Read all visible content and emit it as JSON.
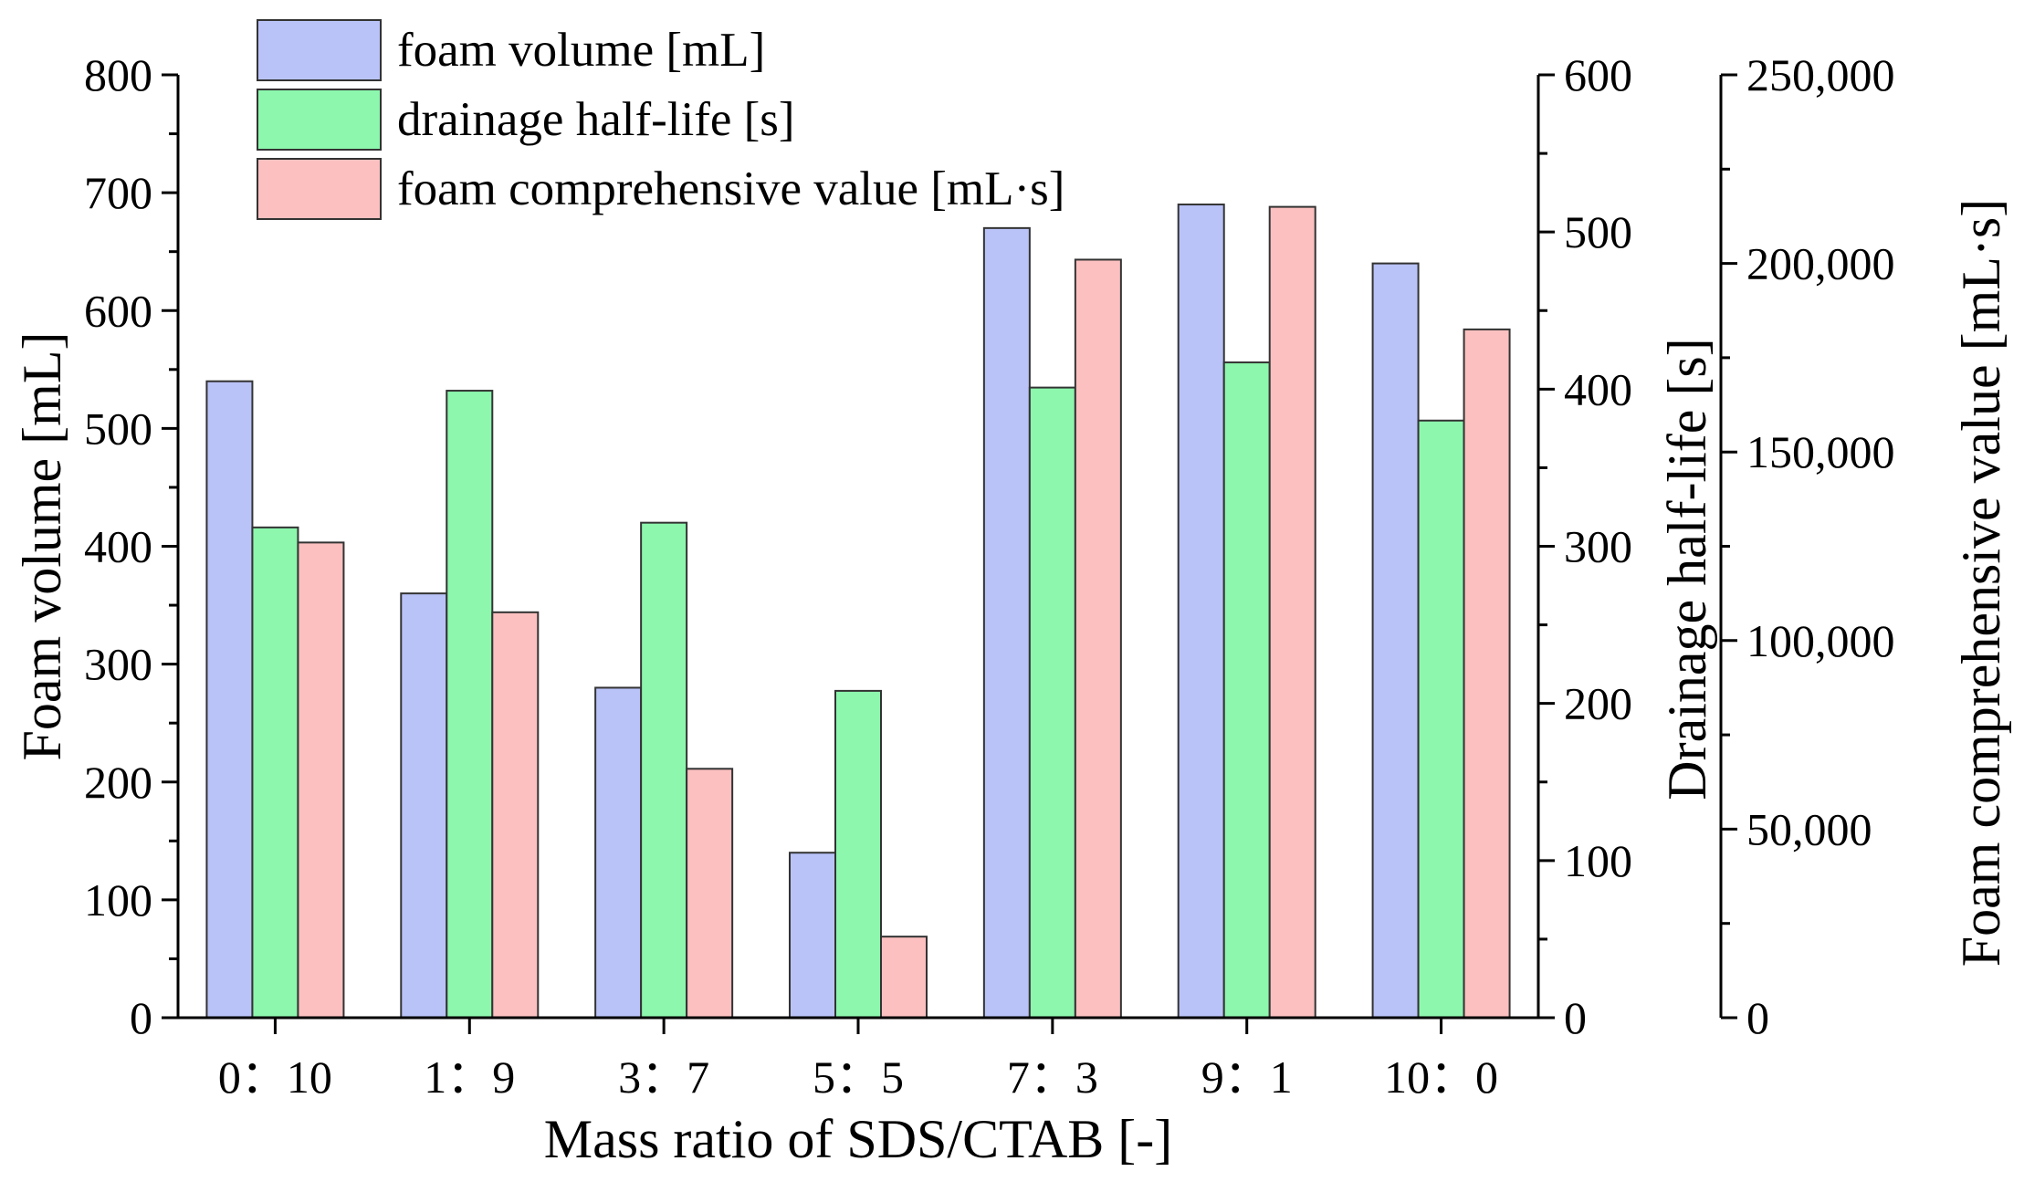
{
  "chart_data": {
    "type": "bar",
    "xlabel": "Mass ratio of SDS/CTAB [-]",
    "categories": [
      "0：10",
      "1：9",
      "3：7",
      "5：5",
      "7：3",
      "9：1",
      "10：0"
    ],
    "series": [
      {
        "name": "foam volume [mL]",
        "axis": "left",
        "color": "#b9c3f8",
        "values": [
          540,
          360,
          280,
          140,
          670,
          690,
          640
        ]
      },
      {
        "name": "drainage half-life [s]",
        "axis": "right1",
        "color": "#8cf7ad",
        "values": [
          312,
          399,
          315,
          208,
          401,
          417,
          380
        ]
      },
      {
        "name": "foam comprehensive value [mL·s]",
        "axis": "right2",
        "color": "#fcc0c0",
        "values": [
          126000,
          107500,
          66000,
          21500,
          201000,
          215000,
          182500
        ]
      }
    ],
    "axes": {
      "left": {
        "label": "Foam volume [mL]",
        "ylim": [
          0,
          800
        ],
        "ticks": [
          0,
          100,
          200,
          300,
          400,
          500,
          600,
          700,
          800
        ],
        "tick_labels": [
          "0",
          "100",
          "200",
          "300",
          "400",
          "500",
          "600",
          "700",
          "800"
        ]
      },
      "right1": {
        "label": "Drainage half-life [s]",
        "ylim": [
          0,
          600
        ],
        "ticks": [
          0,
          100,
          200,
          300,
          400,
          500,
          600
        ],
        "tick_labels": [
          "0",
          "100",
          "200",
          "300",
          "400",
          "500",
          "600"
        ]
      },
      "right2": {
        "label": "Foam comprehensive value [mL·s]",
        "ylim": [
          0,
          250000
        ],
        "ticks": [
          0,
          50000,
          100000,
          150000,
          200000,
          250000
        ],
        "tick_labels": [
          "0",
          "50,000",
          "100,000",
          "150,000",
          "200,000",
          "250,000"
        ]
      }
    },
    "grid": false,
    "legend_position": "top-left"
  }
}
